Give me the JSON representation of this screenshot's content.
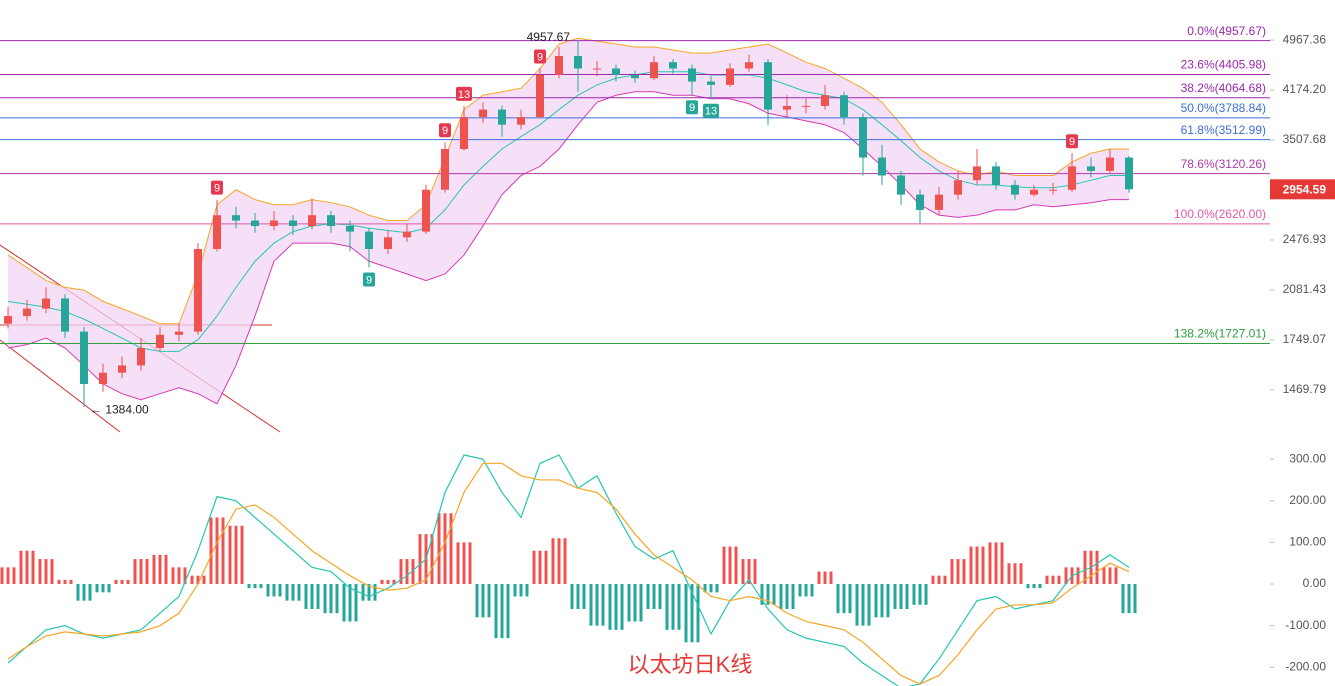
{
  "chart_data": [
    {
      "type": "candlestick",
      "title": "以太坊日K线",
      "log_scale": true,
      "ylim": [
        1269,
        5712
      ],
      "yticks": [
        1469.79,
        1749.07,
        2081.43,
        2476.93,
        3507.68,
        {
          "value": 4174.2,
          "label": "4174.20"
        },
        4967.36
      ],
      "last_price": 2954.59,
      "up_color": "#ef5350",
      "down_color": "#26a69a",
      "open": [
        1850,
        1900,
        1950,
        2020,
        1800,
        1500,
        1560,
        1600,
        1700,
        1780,
        1800,
        2400,
        2700,
        2650,
        2600,
        2650,
        2600,
        2700,
        2600,
        2550,
        2400,
        2500,
        2550,
        2950,
        3400,
        3800,
        3900,
        3700,
        3800,
        4400,
        4700,
        4500,
        4500,
        4400,
        4350,
        4600,
        4500,
        4300,
        4250,
        4500,
        4600,
        3900,
        3950,
        3950,
        4100,
        3800,
        3300,
        3100,
        2900,
        2750,
        2900,
        3050,
        3200,
        3000,
        2900,
        2950,
        2950,
        3200,
        3150,
        3300
      ],
      "high": [
        1960,
        2010,
        2100,
        2050,
        1830,
        1610,
        1650,
        1760,
        1830,
        1850,
        2450,
        2850,
        2780,
        2720,
        2740,
        2700,
        2860,
        2740,
        2650,
        2580,
        2560,
        2620,
        3000,
        3480,
        3950,
        4000,
        3950,
        3900,
        4500,
        4850,
        4957.67,
        4620,
        4560,
        4470,
        4700,
        4650,
        4560,
        4380,
        4580,
        4720,
        4650,
        4100,
        4050,
        4250,
        4150,
        3850,
        3450,
        3150,
        2950,
        2980,
        3150,
        3400,
        3250,
        3050,
        3000,
        3020,
        3350,
        3300,
        3400,
        3320
      ],
      "low": [
        1820,
        1870,
        1920,
        1760,
        1384,
        1460,
        1530,
        1570,
        1680,
        1740,
        1780,
        2380,
        2580,
        2540,
        2560,
        2520,
        2570,
        2540,
        2380,
        2250,
        2360,
        2460,
        2530,
        2920,
        3380,
        3720,
        3550,
        3640,
        3780,
        4350,
        4150,
        4380,
        4300,
        4280,
        4320,
        4420,
        4100,
        4050,
        4220,
        4450,
        3700,
        3800,
        3850,
        3900,
        3700,
        3100,
        3000,
        2800,
        2620,
        2700,
        2850,
        3000,
        2950,
        2850,
        2880,
        2900,
        2930,
        3080,
        3120,
        2920
      ],
      "close": [
        1900,
        1950,
        2020,
        1800,
        1500,
        1560,
        1600,
        1700,
        1780,
        1800,
        2400,
        2700,
        2650,
        2600,
        2650,
        2600,
        2700,
        2600,
        2550,
        2400,
        2500,
        2550,
        2950,
        3400,
        3800,
        3900,
        3700,
        3800,
        4400,
        4700,
        4500,
        4500,
        4400,
        4350,
        4600,
        4500,
        4300,
        4250,
        4500,
        4600,
        3900,
        3950,
        3950,
        4100,
        3800,
        3300,
        3100,
        2900,
        2750,
        2900,
        3050,
        3200,
        3000,
        2900,
        2950,
        2950,
        3200,
        3150,
        3300,
        2955
      ],
      "bands": {
        "upper": [
          2350,
          2250,
          2150,
          2100,
          2080,
          2000,
          1950,
          1900,
          1850,
          1850,
          2200,
          2800,
          2950,
          2850,
          2800,
          2800,
          2850,
          2820,
          2780,
          2700,
          2650,
          2650,
          2800,
          3300,
          3900,
          4100,
          4150,
          4200,
          4500,
          4900,
          5000,
          4950,
          4900,
          4850,
          4850,
          4800,
          4750,
          4750,
          4800,
          4850,
          4900,
          4750,
          4600,
          4500,
          4350,
          4200,
          4000,
          3700,
          3400,
          3250,
          3150,
          3100,
          3150,
          3100,
          3100,
          3100,
          3250,
          3350,
          3400,
          3400
        ],
        "middle": [
          2000,
          1980,
          1960,
          1930,
          1880,
          1820,
          1760,
          1700,
          1680,
          1680,
          1750,
          1900,
          2100,
          2300,
          2450,
          2550,
          2600,
          2620,
          2610,
          2580,
          2560,
          2540,
          2580,
          2750,
          3000,
          3200,
          3400,
          3550,
          3700,
          3900,
          4100,
          4250,
          4350,
          4400,
          4450,
          4450,
          4450,
          4400,
          4400,
          4400,
          4350,
          4250,
          4150,
          4100,
          4050,
          3900,
          3700,
          3500,
          3300,
          3150,
          3050,
          3000,
          3000,
          2980,
          2970,
          2970,
          3000,
          3050,
          3100,
          3100
        ],
        "lower": [
          1700,
          1720,
          1760,
          1700,
          1600,
          1500,
          1450,
          1420,
          1450,
          1480,
          1450,
          1400,
          1600,
          1900,
          2300,
          2450,
          2450,
          2450,
          2420,
          2300,
          2250,
          2200,
          2150,
          2200,
          2350,
          2600,
          2900,
          3100,
          3200,
          3400,
          3700,
          4000,
          4100,
          4150,
          4150,
          4100,
          4100,
          4050,
          4050,
          3980,
          3850,
          3800,
          3750,
          3700,
          3600,
          3400,
          3200,
          3000,
          2800,
          2700,
          2680,
          2700,
          2750,
          2750,
          2800,
          2780,
          2800,
          2820,
          2850,
          2850
        ]
      },
      "band_colors": {
        "upper": "#f5a623",
        "middle": "#26c6b0",
        "lower": "#d63ab4",
        "fill": "#f3d6f5"
      },
      "fib_levels": [
        {
          "label": "0.0%(4957.67)",
          "value": 4957.67,
          "color": "#9c27b0"
        },
        {
          "label": "23.6%(4405.98)",
          "value": 4405.98,
          "color": "#9c27b0"
        },
        {
          "label": "38.2%(4064.68)",
          "value": 4064.68,
          "color": "#9c27b0"
        },
        {
          "label": "50.0%(3788.84)",
          "value": 3788.84,
          "color": "#3f6fd8"
        },
        {
          "label": "61.8%(3512.99)",
          "value": 3512.99,
          "color": "#3f6fd8"
        },
        {
          "label": "78.6%(3120.26)",
          "value": 3120.26,
          "color": "#b03aa8"
        },
        {
          "label": "100.0%(2620.00)",
          "value": 2620,
          "color": "#e05aa8"
        },
        {
          "label": "138.2%(1727.01)",
          "value": 1727.01,
          "color": "#2e9e3e"
        }
      ],
      "extremes": [
        {
          "label": "4957.67",
          "value": 4957.67,
          "index": 30
        },
        {
          "label": "← 1384.00",
          "value": 1384,
          "index": 4
        }
      ],
      "signals": [
        {
          "text": "9",
          "index": 11,
          "side": "up"
        },
        {
          "text": "9",
          "index": 23,
          "side": "up"
        },
        {
          "text": "13",
          "index": 24,
          "side": "up"
        },
        {
          "text": "9",
          "index": 28,
          "side": "up"
        },
        {
          "text": "9",
          "index": 56,
          "side": "up"
        },
        {
          "text": "9",
          "index": 19,
          "side": "down"
        },
        {
          "text": "9",
          "index": 36,
          "side": "down"
        },
        {
          "text": "13",
          "index": 37,
          "side": "down"
        }
      ]
    },
    {
      "type": "macd",
      "ylim": [
        -245,
        346
      ],
      "yticks": [
        {
          "value": 300,
          "label": "300.00"
        },
        {
          "value": 200,
          "label": "200.00"
        },
        {
          "value": 100,
          "label": "100.00"
        },
        {
          "value": 0,
          "label": "0.00"
        },
        {
          "value": -100,
          "label": "-100.00"
        },
        {
          "value": -200,
          "label": "-200.00"
        }
      ],
      "up_color": "#ef5350",
      "down_color": "#26a69a",
      "dif_color": "#26c6b0",
      "dea_color": "#f5a623",
      "histogram": [
        40,
        80,
        60,
        10,
        -40,
        -20,
        10,
        60,
        70,
        40,
        20,
        160,
        140,
        -10,
        -30,
        -40,
        -60,
        -70,
        -90,
        -40,
        10,
        60,
        120,
        170,
        100,
        -80,
        -130,
        -30,
        80,
        110,
        -60,
        -100,
        -110,
        -90,
        -60,
        -110,
        -140,
        -20,
        90,
        60,
        -50,
        -60,
        -30,
        30,
        -70,
        -100,
        -80,
        -60,
        -50,
        20,
        60,
        90,
        100,
        50,
        -10,
        20,
        40,
        80,
        40,
        -70
      ],
      "dif": [
        -190,
        -150,
        -110,
        -100,
        -120,
        -130,
        -120,
        -110,
        -70,
        -30,
        80,
        210,
        200,
        160,
        120,
        80,
        40,
        30,
        -10,
        -30,
        -10,
        20,
        60,
        220,
        310,
        300,
        220,
        160,
        290,
        310,
        230,
        260,
        170,
        90,
        60,
        80,
        -20,
        -120,
        -40,
        10,
        -60,
        -110,
        -130,
        -140,
        -150,
        -190,
        -220,
        -250,
        -240,
        -180,
        -110,
        -40,
        -30,
        -60,
        -50,
        -40,
        20,
        40,
        70,
        40
      ],
      "dea": [
        -180,
        -150,
        -125,
        -115,
        -120,
        -125,
        -120,
        -115,
        -100,
        -70,
        0,
        100,
        180,
        190,
        160,
        120,
        80,
        50,
        20,
        -5,
        -15,
        -10,
        10,
        100,
        220,
        290,
        290,
        260,
        250,
        250,
        230,
        220,
        180,
        120,
        70,
        40,
        10,
        -30,
        -40,
        -30,
        -40,
        -70,
        -90,
        -100,
        -110,
        -140,
        -180,
        -220,
        -240,
        -220,
        -170,
        -110,
        -60,
        -50,
        -50,
        -45,
        -10,
        20,
        50,
        30
      ]
    }
  ]
}
